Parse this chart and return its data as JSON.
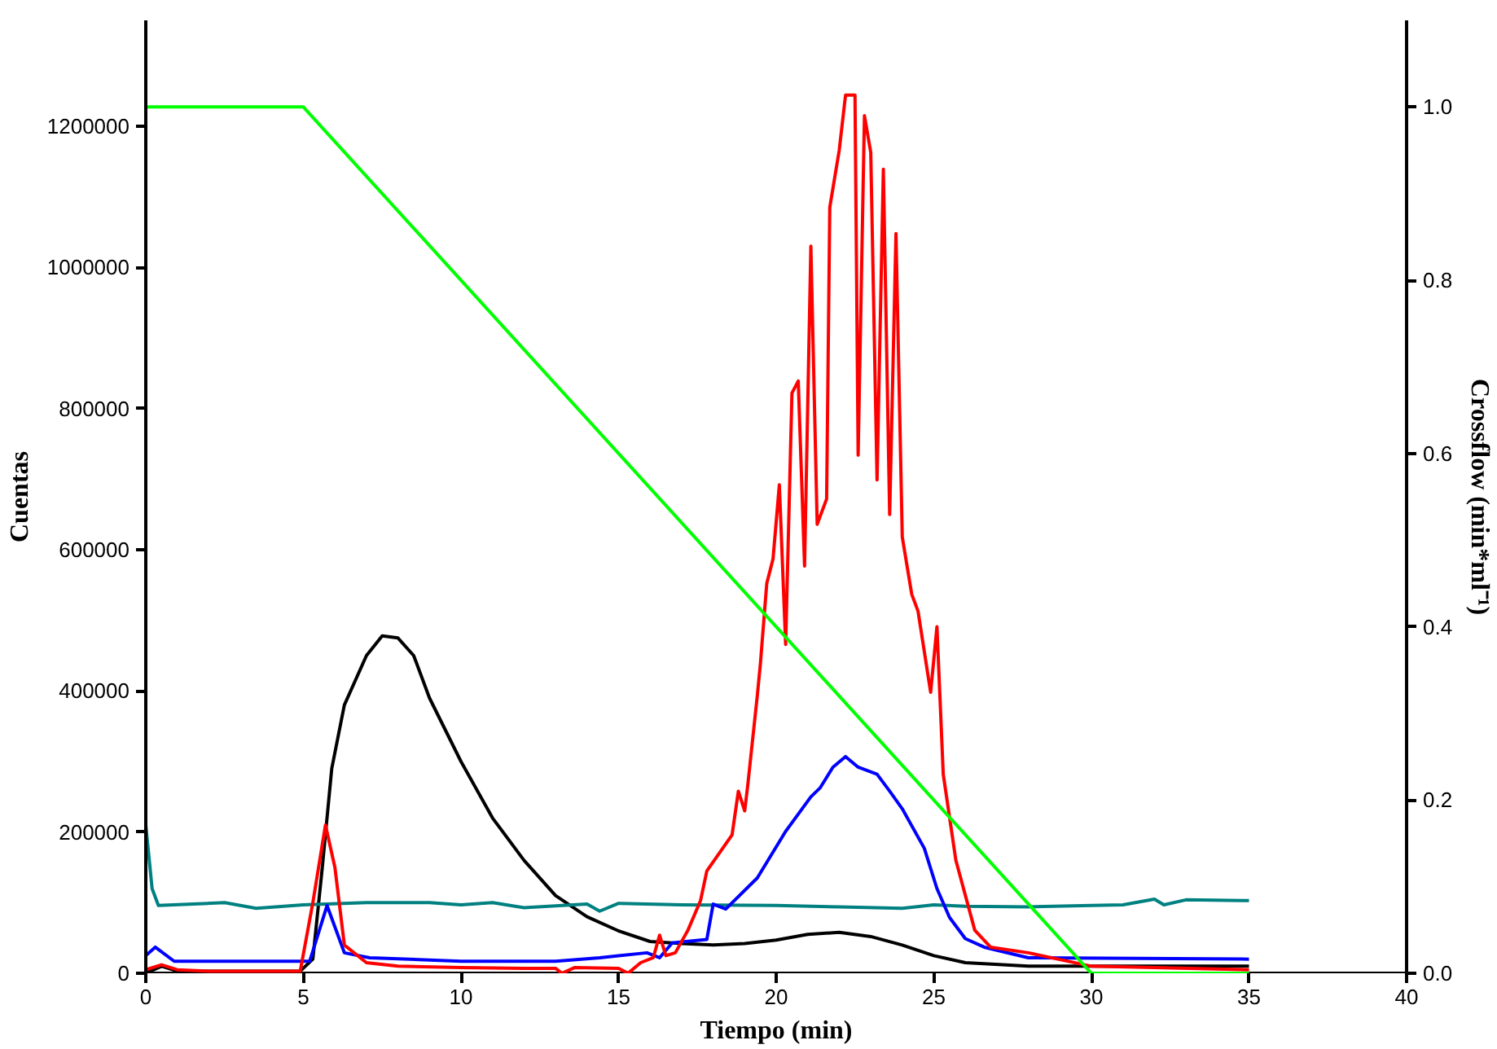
{
  "chart_data": {
    "type": "line",
    "xlabel": "Tiempo (min)",
    "ylabel": "Cuentas",
    "y2label": "Crossflow (min*ml⁻¹)",
    "xlim": [
      0,
      40
    ],
    "xticks": [
      0,
      5,
      10,
      15,
      20,
      25,
      30,
      35,
      40
    ],
    "ylim": [
      0,
      1350000
    ],
    "yticks": [
      0,
      200000,
      400000,
      600000,
      800000,
      1000000,
      1200000
    ],
    "y2lim": [
      0,
      1.1
    ],
    "y2ticks": [
      {
        "value": 0,
        "label": "0.0"
      },
      0.2,
      0.4,
      0.6,
      0.8,
      {
        "value": 1,
        "label": "1.0"
      }
    ],
    "grid": false,
    "marker": "none",
    "line_style": "solid",
    "series": [
      {
        "color": "#000000",
        "x": [
          0,
          0.5,
          1,
          3,
          4.9,
          5.3,
          5.6,
          5.9,
          6.3,
          7,
          7.5,
          8,
          8.5,
          9,
          10,
          11,
          12,
          13,
          14,
          15,
          16,
          17,
          18,
          19,
          20,
          21,
          22,
          23,
          24,
          25,
          26,
          28,
          35
        ],
        "values": [
          0,
          10000,
          3000,
          3000,
          3000,
          20000,
          150000,
          290000,
          380000,
          450000,
          478000,
          475000,
          450000,
          390000,
          300000,
          220000,
          160000,
          110000,
          80000,
          60000,
          45000,
          42000,
          40000,
          42000,
          47000,
          55000,
          58000,
          52000,
          40000,
          25000,
          15000,
          10000,
          10000
        ]
      },
      {
        "color": "#008080",
        "x": [
          0,
          0.2,
          0.4,
          1.5,
          2.5,
          3.5,
          5,
          7,
          9,
          10,
          11,
          12,
          14,
          14.4,
          15,
          17,
          20,
          22,
          24,
          25,
          26,
          28,
          30,
          31,
          32,
          32.3,
          33,
          35
        ],
        "values": [
          210000,
          120000,
          96000,
          98000,
          100000,
          92000,
          97000,
          100000,
          100000,
          97000,
          100000,
          93000,
          98000,
          88000,
          99000,
          97000,
          96000,
          94000,
          92000,
          97000,
          95000,
          94000,
          96000,
          97000,
          105000,
          97000,
          104000,
          103000
        ]
      },
      {
        "color": "#0000ff",
        "x": [
          0,
          0.3,
          0.9,
          3,
          5.2,
          5.75,
          6.3,
          7.1,
          10,
          13,
          14.4,
          15.9,
          16.3,
          16.7,
          17.8,
          18,
          18.4,
          19.4,
          20.3,
          21.1,
          21.4,
          21.8,
          22.2,
          22.6,
          23.2,
          23.6,
          24,
          24.3,
          24.7,
          25.1,
          25.5,
          26,
          26.6,
          28,
          35
        ],
        "values": [
          25000,
          37000,
          17000,
          17000,
          17000,
          96000,
          29000,
          22000,
          17000,
          17000,
          22000,
          29000,
          22000,
          43000,
          48000,
          98000,
          91000,
          135000,
          201000,
          250000,
          263000,
          292000,
          307000,
          292000,
          282000,
          258000,
          233000,
          209000,
          177000,
          120000,
          79000,
          49000,
          37000,
          22000,
          20000
        ]
      },
      {
        "color": "#ff0000",
        "x": [
          0,
          0.5,
          1,
          2,
          4.9,
          5.3,
          5.7,
          6,
          6.3,
          7,
          8,
          10,
          12,
          13,
          13.2,
          13.6,
          15,
          15.3,
          15.7,
          16.1,
          16.3,
          16.5,
          16.8,
          17.2,
          17.6,
          17.8,
          18.6,
          18.8,
          19,
          19.1,
          19.4,
          19.5,
          19.7,
          19.9,
          20.1,
          20.3,
          20.5,
          20.7,
          20.9,
          21.1,
          21.3,
          21.6,
          21.7,
          22,
          22.2,
          22.5,
          22.6,
          22.8,
          23,
          23.2,
          23.4,
          23.6,
          23.8,
          24,
          24.3,
          24.5,
          24.9,
          25.1,
          25.3,
          25.7,
          26.3,
          26.8,
          28,
          30,
          35
        ],
        "values": [
          5000,
          12000,
          5000,
          3000,
          3000,
          100000,
          210000,
          150000,
          40000,
          15000,
          10000,
          8000,
          7000,
          7000,
          0,
          8000,
          7000,
          0,
          15000,
          22000,
          54000,
          25000,
          29000,
          61000,
          103000,
          145000,
          196000,
          258000,
          230000,
          267000,
          393000,
          439000,
          552000,
          587000,
          692000,
          466000,
          822000,
          839000,
          577000,
          1030000,
          636000,
          672000,
          1085000,
          1166000,
          1244000,
          1244000,
          734000,
          1215000,
          1163000,
          699000,
          1139000,
          650000,
          1048000,
          618000,
          537000,
          513000,
          398000,
          491000,
          282000,
          160000,
          61000,
          37000,
          29000,
          10000,
          5000
        ]
      },
      {
        "color": "#00ff00",
        "axis": "y2",
        "x": [
          0,
          5,
          30,
          35
        ],
        "values": [
          1.0,
          1.0,
          0,
          0
        ]
      }
    ]
  }
}
